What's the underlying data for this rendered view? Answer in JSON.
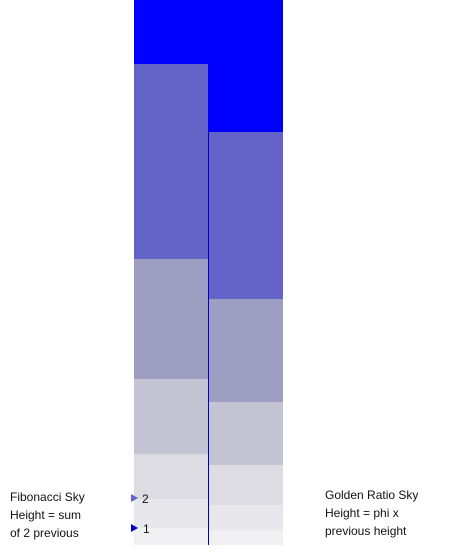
{
  "left": {
    "title": "Fibonacci Sky",
    "line2": "Height = sum",
    "line3": "of 2 previous",
    "markers": [
      "2",
      "1"
    ]
  },
  "right": {
    "title": "Golden Ratio Sky",
    "line2": "Height = phi x",
    "line3": "previous height"
  }
}
